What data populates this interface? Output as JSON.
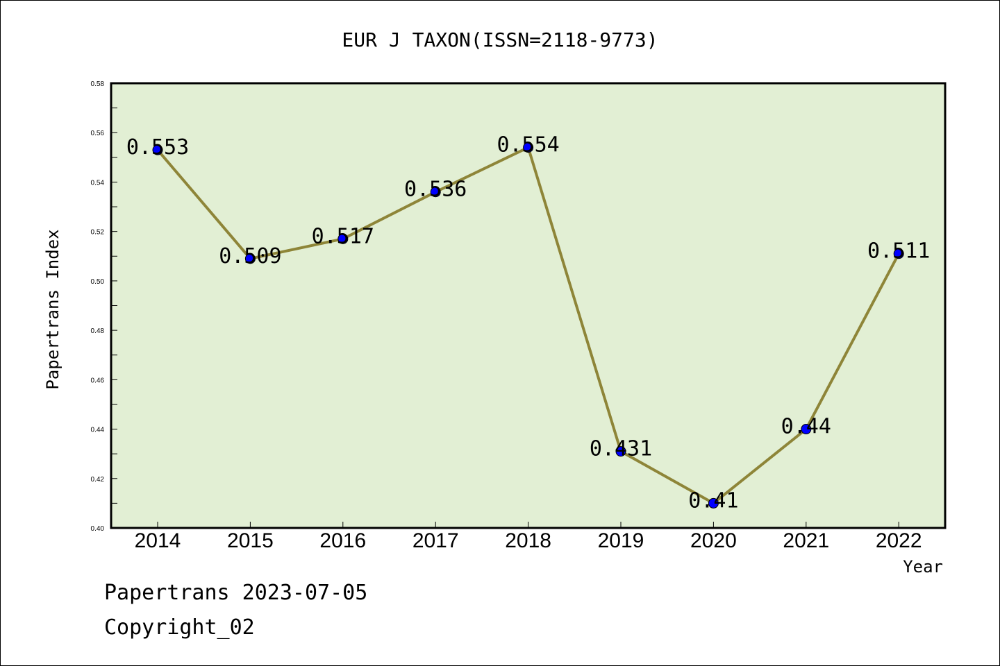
{
  "chart_data": {
    "type": "line",
    "title": "EUR J TAXON(ISSN=2118-9773)",
    "xlabel": "Year",
    "ylabel": "Papertrans Index",
    "categories": [
      "2014",
      "2015",
      "2016",
      "2017",
      "2018",
      "2019",
      "2020",
      "2021",
      "2022"
    ],
    "values": [
      0.553,
      0.509,
      0.517,
      0.536,
      0.554,
      0.431,
      0.41,
      0.44,
      0.511
    ],
    "data_labels": [
      "0.553",
      "0.509",
      "0.517",
      "0.536",
      "0.554",
      "0.431",
      "0.41",
      "0.44",
      "0.511"
    ],
    "ylim": [
      0.4,
      0.58
    ],
    "yticks": [
      "0.40",
      "0.42",
      "0.44",
      "0.46",
      "0.48",
      "0.50",
      "0.52",
      "0.54",
      "0.56",
      "0.58"
    ],
    "grid": false,
    "legend": "none",
    "colors": {
      "plot_background": "#e2efd4",
      "line": "#8e8538",
      "marker": "#0000ff"
    }
  },
  "footer": {
    "date_line": "Papertrans 2023-07-05",
    "copyright": "Copyright_02"
  }
}
